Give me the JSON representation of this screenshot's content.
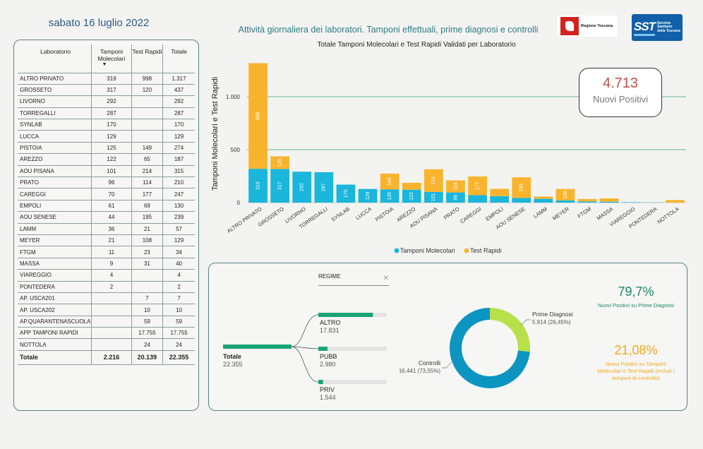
{
  "header": {
    "date": "sabato 16 luglio 2022",
    "title": "Attività giornaliera dei laboratori. Tamponi effettuali, prime diagnosi e controlli",
    "logo_regione": "Regione Toscana",
    "logo_sst_big": "SST",
    "logo_sst_small": "Servizio Sanitario della Toscana"
  },
  "table": {
    "headers": {
      "lab": "Laboratorio",
      "mol": "Tamponi Molecolari",
      "rap": "Test Rapidi",
      "tot": "Totale"
    },
    "rows": [
      {
        "lab": "ALTRO PRIVATO",
        "mol": "319",
        "rap": "998",
        "tot": "1.317"
      },
      {
        "lab": "GROSSETO",
        "mol": "317",
        "rap": "120",
        "tot": "437"
      },
      {
        "lab": "LIVORNO",
        "mol": "292",
        "rap": "",
        "tot": "292"
      },
      {
        "lab": "TORREGALLI",
        "mol": "287",
        "rap": "",
        "tot": "287"
      },
      {
        "lab": "SYNLAB",
        "mol": "170",
        "rap": "",
        "tot": "170"
      },
      {
        "lab": "LUCCA",
        "mol": "129",
        "rap": "",
        "tot": "129"
      },
      {
        "lab": "PISTOIA",
        "mol": "125",
        "rap": "149",
        "tot": "274"
      },
      {
        "lab": "AREZZO",
        "mol": "122",
        "rap": "65",
        "tot": "187"
      },
      {
        "lab": "AOU PISANA",
        "mol": "101",
        "rap": "214",
        "tot": "315"
      },
      {
        "lab": "PRATO",
        "mol": "96",
        "rap": "114",
        "tot": "210"
      },
      {
        "lab": "CAREGGI",
        "mol": "70",
        "rap": "177",
        "tot": "247"
      },
      {
        "lab": "EMPOLI",
        "mol": "61",
        "rap": "69",
        "tot": "130"
      },
      {
        "lab": "AOU SENESE",
        "mol": "44",
        "rap": "195",
        "tot": "239"
      },
      {
        "lab": "LAMM",
        "mol": "36",
        "rap": "21",
        "tot": "57"
      },
      {
        "lab": "MEYER",
        "mol": "21",
        "rap": "108",
        "tot": "129"
      },
      {
        "lab": "FTGM",
        "mol": "11",
        "rap": "23",
        "tot": "34"
      },
      {
        "lab": "MASSA",
        "mol": "9",
        "rap": "31",
        "tot": "40"
      },
      {
        "lab": "VIAREGGIO",
        "mol": "4",
        "rap": "",
        "tot": "4"
      },
      {
        "lab": "PONTEDERA",
        "mol": "2",
        "rap": "",
        "tot": "2"
      },
      {
        "lab": "AP. USCA201",
        "mol": "",
        "rap": "7",
        "tot": "7"
      },
      {
        "lab": "AP. USCA202",
        "mol": "",
        "rap": "10",
        "tot": "10"
      },
      {
        "lab": "AP.QUARANTENASCUOLA",
        "mol": "",
        "rap": "59",
        "tot": "59"
      },
      {
        "lab": "APP TAMPONI RAPIDI",
        "mol": "",
        "rap": "17.755",
        "tot": "17.755"
      },
      {
        "lab": "NOTTOLA",
        "mol": "",
        "rap": "24",
        "tot": "24"
      }
    ],
    "totals": {
      "lab": "Totale",
      "mol": "2.216",
      "rap": "20.139",
      "tot": "22.355"
    }
  },
  "kpi": {
    "value": "4.713",
    "label": "Nuovi Positivi"
  },
  "chart_data": [
    {
      "type": "bar",
      "stacked": true,
      "title": "Totale Tamponi Molecolari e Test Rapidi Validati per Laboratorio",
      "ylabel": "Tamponi Molecolari e Test Rapidi",
      "ylim": [
        0,
        1300
      ],
      "yticks": [
        0,
        500,
        1000
      ],
      "ytick_labels": [
        "0",
        "500",
        "1.000"
      ],
      "grid": true,
      "legend": "bottom",
      "categories": [
        "ALTRO PRIVATO",
        "GROSSETO",
        "LIVORNO",
        "TORREGALLI",
        "SYNLAB",
        "LUCCA",
        "PISTOIA",
        "AREZZO",
        "AOU PISANA",
        "PRATO",
        "CAREGGI",
        "EMPOLI",
        "AOU SENESE",
        "LAMM",
        "MEYER",
        "FTGM",
        "MASSA",
        "VIAREGGIO",
        "PONTEDERA",
        "NOTTOLA"
      ],
      "series": [
        {
          "name": "Tamponi Molecolari",
          "color": "#1ab6dc",
          "values": [
            319,
            317,
            292,
            287,
            170,
            129,
            125,
            122,
            101,
            96,
            70,
            61,
            44,
            36,
            21,
            11,
            9,
            4,
            2,
            0
          ]
        },
        {
          "name": "Test Rapidi",
          "color": "#f9b42e",
          "values": [
            998,
            120,
            0,
            0,
            0,
            0,
            149,
            65,
            214,
            114,
            177,
            69,
            195,
            21,
            108,
            23,
            31,
            0,
            0,
            24
          ]
        }
      ]
    },
    {
      "type": "bar",
      "orientation": "horizontal",
      "filter_label": "REGIME",
      "root": {
        "name": "Totale",
        "value": 22355,
        "value_label": "22.355"
      },
      "categories": [
        "ALTRO",
        "PUBB",
        "PRIV"
      ],
      "values": [
        17831,
        2980,
        1544
      ],
      "value_labels": [
        "17.831",
        "2.980",
        "1.544"
      ],
      "color": "#1aa477"
    },
    {
      "type": "pie",
      "donut": true,
      "categories": [
        "Prime Diagnosi",
        "Controlli"
      ],
      "values": [
        5914,
        16441
      ],
      "value_labels": [
        "5.914 (26,45%)",
        "16.441 (73,55%)"
      ],
      "colors": [
        "#b8e04a",
        "#0c95c0"
      ]
    }
  ],
  "percentages": [
    {
      "value": "79,7%",
      "label": "Nuovi Positivi su Prime Diagnosi",
      "color": "#1a8a64"
    },
    {
      "value": "21,08%",
      "label": "Nuovi Positivi su Tamponi Molecolari e Test Rapidi (inclusi i tamponi di controllo)",
      "color": "#f0a81e"
    }
  ]
}
